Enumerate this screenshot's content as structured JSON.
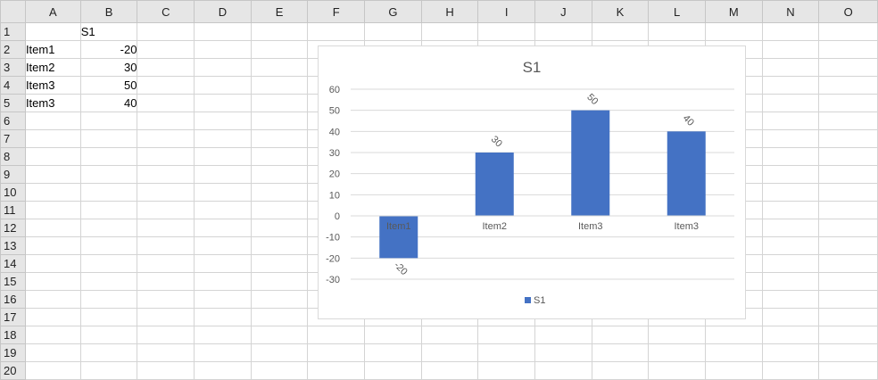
{
  "sheet": {
    "columns": [
      "A",
      "B",
      "C",
      "D",
      "E",
      "F",
      "G",
      "H",
      "I",
      "J",
      "K",
      "L",
      "M",
      "N",
      "O"
    ],
    "rows": [
      "1",
      "2",
      "3",
      "4",
      "5",
      "6",
      "7",
      "8",
      "9",
      "10",
      "11",
      "12",
      "13",
      "14",
      "15",
      "16",
      "17",
      "18",
      "19",
      "20"
    ],
    "cells": [
      {
        "row": 0,
        "col": 1,
        "value": "S1",
        "align": "left"
      },
      {
        "row": 1,
        "col": 0,
        "value": "Item1",
        "align": "left"
      },
      {
        "row": 1,
        "col": 1,
        "value": "-20",
        "align": "right"
      },
      {
        "row": 2,
        "col": 0,
        "value": "Item2",
        "align": "left"
      },
      {
        "row": 2,
        "col": 1,
        "value": "30",
        "align": "right"
      },
      {
        "row": 3,
        "col": 0,
        "value": "Item3",
        "align": "left"
      },
      {
        "row": 3,
        "col": 1,
        "value": "50",
        "align": "right"
      },
      {
        "row": 4,
        "col": 0,
        "value": "Item3",
        "align": "left"
      },
      {
        "row": 4,
        "col": 1,
        "value": "40",
        "align": "right"
      }
    ]
  },
  "chart_data": {
    "type": "bar",
    "title": "S1",
    "categories": [
      "Item1",
      "Item2",
      "Item3",
      "Item3"
    ],
    "series": [
      {
        "name": "S1",
        "values": [
          -20,
          30,
          50,
          40
        ]
      }
    ],
    "ylim": [
      -30,
      60
    ],
    "yticks": [
      -30,
      -20,
      -10,
      0,
      10,
      20,
      30,
      40,
      50,
      60
    ],
    "grid": true,
    "legend": "bottom",
    "data_labels": true,
    "bar_color": "#4472c4"
  }
}
